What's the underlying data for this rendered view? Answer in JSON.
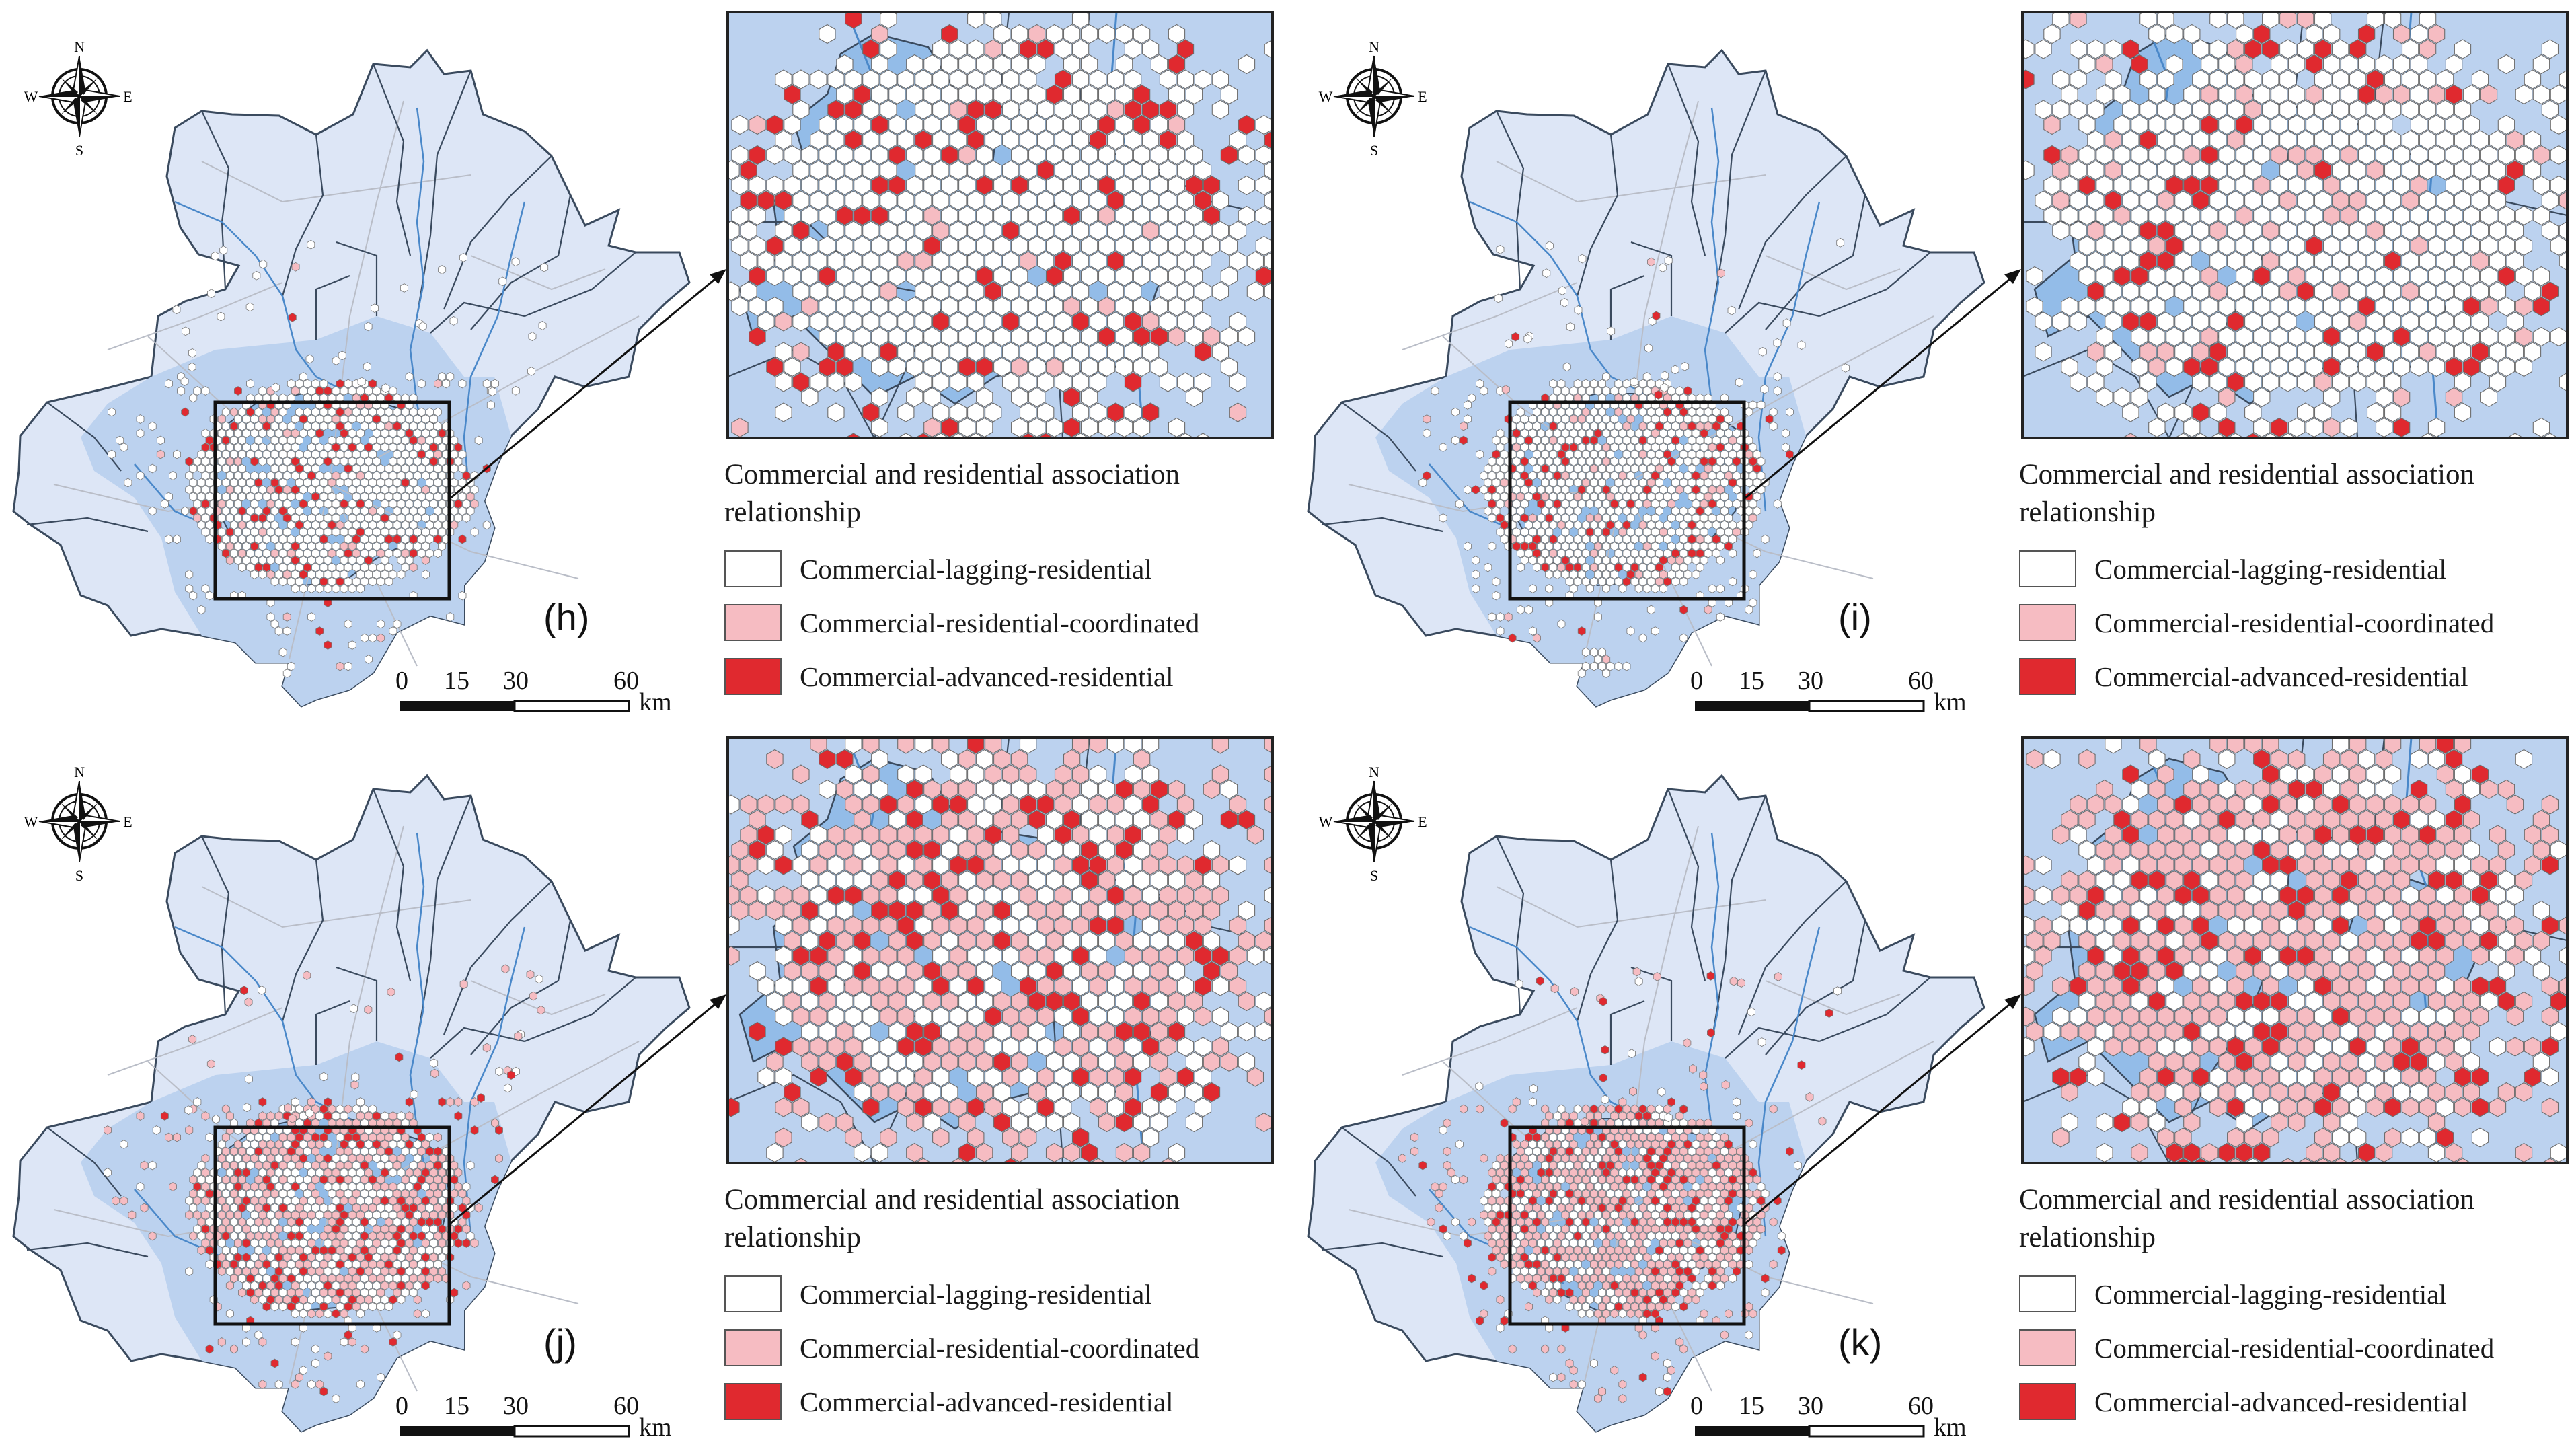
{
  "compass": {
    "n": "N",
    "s": "S",
    "e": "E",
    "w": "W"
  },
  "scale_bar": {
    "ticks": [
      "0",
      "15",
      "30",
      "60"
    ],
    "unit": "km"
  },
  "legend": {
    "title_line1": "Commercial and residential association",
    "title_line2": "relationship",
    "items": [
      {
        "label": "Commercial-lagging-residential",
        "color": "#ffffff"
      },
      {
        "label": "Commercial-residential-coordinated",
        "color": "#f6bcc2"
      },
      {
        "label": "Commercial-advanced-residential",
        "color": "#e0292f"
      }
    ]
  },
  "colors": {
    "outer_district": "#dde6f6",
    "plain_district": "#bcd2ef",
    "core_district": "#93bce8",
    "boundary": "#3a4a5e",
    "river": "#4a88c9",
    "road": "#b9bdc7"
  },
  "panels": [
    {
      "label": "(h)",
      "mix": {
        "lagging": 0.82,
        "coordinated": 0.06,
        "advanced": 0.12
      }
    },
    {
      "label": "(i)",
      "mix": {
        "lagging": 0.8,
        "coordinated": 0.1,
        "advanced": 0.1
      }
    },
    {
      "label": "(j)",
      "mix": {
        "lagging": 0.4,
        "coordinated": 0.45,
        "advanced": 0.15
      }
    },
    {
      "label": "(k)",
      "mix": {
        "lagging": 0.3,
        "coordinated": 0.55,
        "advanced": 0.15
      }
    }
  ]
}
